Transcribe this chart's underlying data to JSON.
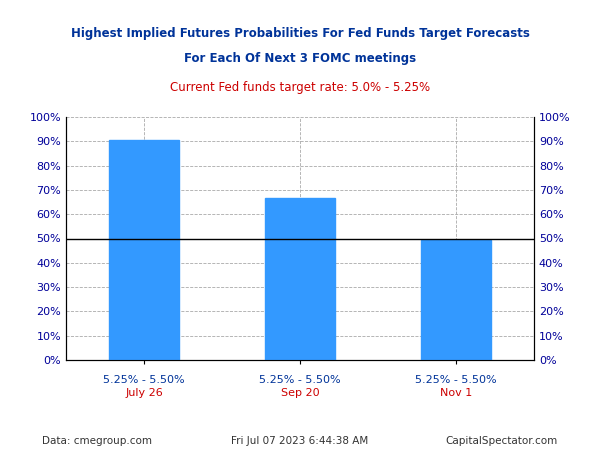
{
  "title_line1": "Highest Implied Futures Probabilities For Fed Funds Target Forecasts",
  "title_line2": "For Each Of Next 3 FOMC meetings",
  "subtitle": "Current Fed funds target rate: 5.0% - 5.25%",
  "title_color": "#003399",
  "subtitle_color": "#cc0000",
  "tick_labels_line1": [
    "5.25% - 5.50%",
    "5.25% - 5.50%",
    "5.25% - 5.50%"
  ],
  "tick_labels_line2": [
    "July 26",
    "Sep 20",
    "Nov 1"
  ],
  "bar_values": [
    0.905,
    0.665,
    0.493
  ],
  "bar_color": "#3399ff",
  "ylim": [
    0,
    1.0
  ],
  "yticks": [
    0.0,
    0.1,
    0.2,
    0.3,
    0.4,
    0.5,
    0.6,
    0.7,
    0.8,
    0.9,
    1.0
  ],
  "hline_y": 0.5,
  "hline_color": "#000000",
  "grid_color": "#aaaaaa",
  "footer_left": "Data: cmegroup.com",
  "footer_center": "Fri Jul 07 2023 6:44:38 AM",
  "footer_right": "CapitalSpectator.com",
  "background_color": "#ffffff",
  "tick_label_color": "#000099",
  "bar_width": 0.45,
  "xlim": [
    -0.5,
    2.5
  ],
  "title_fontsize": 8.5,
  "subtitle_fontsize": 8.5,
  "ytick_fontsize": 8,
  "xtick_fontsize": 8,
  "footer_fontsize": 7.5
}
